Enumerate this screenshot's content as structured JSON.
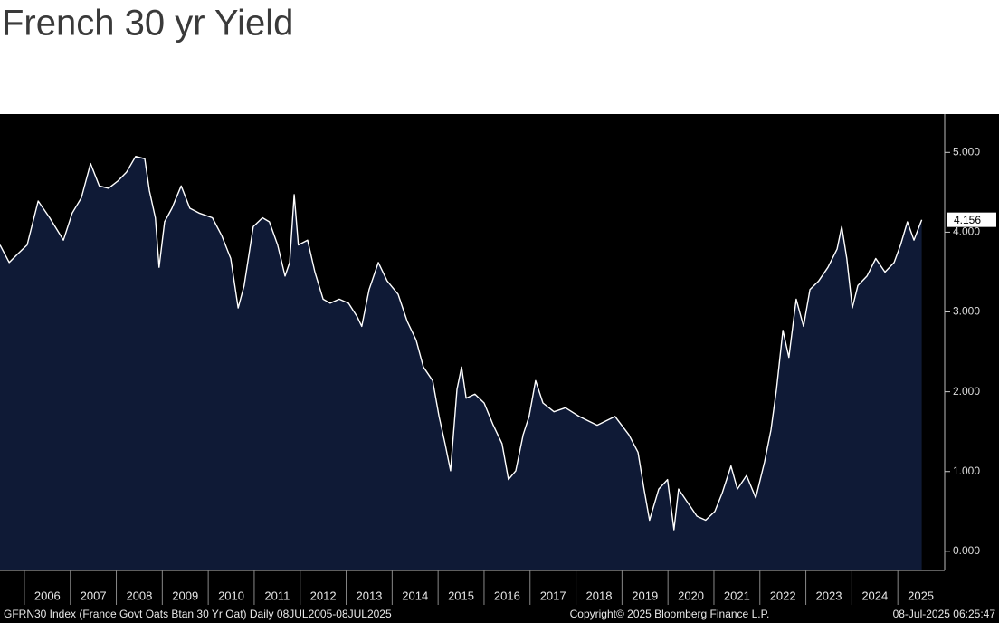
{
  "chart_data": {
    "type": "area",
    "title": "French 30 yr Yield",
    "footer": {
      "left": "GFRN30 Index (France Govt Oats Btan 30 Yr Oat)  Daily 08JUL2005-08JUL2025",
      "center": "Copyright© 2025 Bloomberg Finance L.P.",
      "right": "08-Jul-2025 06:25:47"
    },
    "x": [
      2005.47,
      2005.67,
      2005.86,
      2006.06,
      2006.3,
      2006.55,
      2006.85,
      2007.04,
      2007.24,
      2007.44,
      2007.63,
      2007.83,
      2008.03,
      2008.22,
      2008.42,
      2008.62,
      2008.72,
      2008.85,
      2008.93,
      2009.05,
      2009.21,
      2009.41,
      2009.6,
      2009.8,
      2010.09,
      2010.29,
      2010.49,
      2010.65,
      2010.78,
      2010.98,
      2011.18,
      2011.33,
      2011.51,
      2011.67,
      2011.77,
      2011.87,
      2011.96,
      2012.16,
      2012.32,
      2012.5,
      2012.65,
      2012.85,
      2013.05,
      2013.24,
      2013.34,
      2013.5,
      2013.7,
      2013.89,
      2014.13,
      2014.33,
      2014.52,
      2014.68,
      2014.88,
      2015.02,
      2015.15,
      2015.27,
      2015.41,
      2015.51,
      2015.61,
      2015.8,
      2016.0,
      2016.2,
      2016.39,
      2016.53,
      2016.69,
      2016.85,
      2016.98,
      2017.12,
      2017.28,
      2017.52,
      2017.77,
      2018.07,
      2018.46,
      2018.85,
      2019.15,
      2019.35,
      2019.48,
      2019.6,
      2019.8,
      2019.99,
      2020.13,
      2020.23,
      2020.43,
      2020.63,
      2020.82,
      2021.02,
      2021.18,
      2021.37,
      2021.51,
      2021.71,
      2021.91,
      2022.1,
      2022.24,
      2022.36,
      2022.5,
      2022.63,
      2022.79,
      2022.95,
      2023.09,
      2023.28,
      2023.48,
      2023.68,
      2023.78,
      2023.89,
      2024.01,
      2024.13,
      2024.33,
      2024.52,
      2024.72,
      2024.92,
      2025.06,
      2025.21,
      2025.35,
      2025.52
    ],
    "series": [
      {
        "name": "GFRN30 Index",
        "color": "#ffffff",
        "fill": "#0f1a36",
        "values": [
          3.84,
          3.62,
          3.73,
          3.84,
          4.39,
          4.18,
          3.9,
          4.24,
          4.43,
          4.86,
          4.58,
          4.55,
          4.64,
          4.75,
          4.95,
          4.92,
          4.52,
          4.18,
          3.56,
          4.13,
          4.3,
          4.58,
          4.3,
          4.24,
          4.18,
          3.96,
          3.67,
          3.05,
          3.33,
          4.07,
          4.18,
          4.13,
          3.84,
          3.45,
          3.62,
          4.47,
          3.84,
          3.9,
          3.5,
          3.16,
          3.11,
          3.16,
          3.11,
          2.94,
          2.82,
          3.28,
          3.62,
          3.39,
          3.22,
          2.88,
          2.65,
          2.31,
          2.14,
          1.69,
          1.35,
          1.01,
          2.03,
          2.31,
          1.92,
          1.97,
          1.86,
          1.58,
          1.35,
          0.9,
          1.01,
          1.46,
          1.69,
          2.14,
          1.86,
          1.75,
          1.8,
          1.69,
          1.58,
          1.69,
          1.46,
          1.24,
          0.78,
          0.39,
          0.78,
          0.9,
          0.27,
          0.78,
          0.61,
          0.44,
          0.39,
          0.5,
          0.73,
          1.07,
          0.78,
          0.95,
          0.67,
          1.12,
          1.52,
          2.03,
          2.77,
          2.43,
          3.16,
          2.82,
          3.28,
          3.39,
          3.56,
          3.79,
          4.07,
          3.67,
          3.05,
          3.33,
          3.45,
          3.67,
          3.5,
          3.62,
          3.84,
          4.13,
          3.9,
          4.156
        ]
      }
    ],
    "xlim": [
      2005.47,
      2026.02
    ],
    "xticks": [
      {
        "value": 2006,
        "label": "2006"
      },
      {
        "value": 2007,
        "label": "2007"
      },
      {
        "value": 2008,
        "label": "2008"
      },
      {
        "value": 2009,
        "label": "2009"
      },
      {
        "value": 2010,
        "label": "2010"
      },
      {
        "value": 2011,
        "label": "2011"
      },
      {
        "value": 2012,
        "label": "2012"
      },
      {
        "value": 2013,
        "label": "2013"
      },
      {
        "value": 2014,
        "label": "2014"
      },
      {
        "value": 2015,
        "label": "2015"
      },
      {
        "value": 2016,
        "label": "2016"
      },
      {
        "value": 2017,
        "label": "2017"
      },
      {
        "value": 2018,
        "label": "2018"
      },
      {
        "value": 2019,
        "label": "2019"
      },
      {
        "value": 2020,
        "label": "2020"
      },
      {
        "value": 2021,
        "label": "2021"
      },
      {
        "value": 2022,
        "label": "2022"
      },
      {
        "value": 2023,
        "label": "2023"
      },
      {
        "value": 2024,
        "label": "2024"
      },
      {
        "value": 2025,
        "label": "2025"
      }
    ],
    "ylim": [
      -0.24,
      5.48
    ],
    "yticks": [
      {
        "value": 0,
        "label": "0.000"
      },
      {
        "value": 1,
        "label": "1.000"
      },
      {
        "value": 2,
        "label": "2.000"
      },
      {
        "value": 3,
        "label": "3.000"
      },
      {
        "value": 4,
        "label": "4.000"
      },
      {
        "value": 5,
        "label": "5.000"
      }
    ],
    "y_axis_side": "right"
  }
}
